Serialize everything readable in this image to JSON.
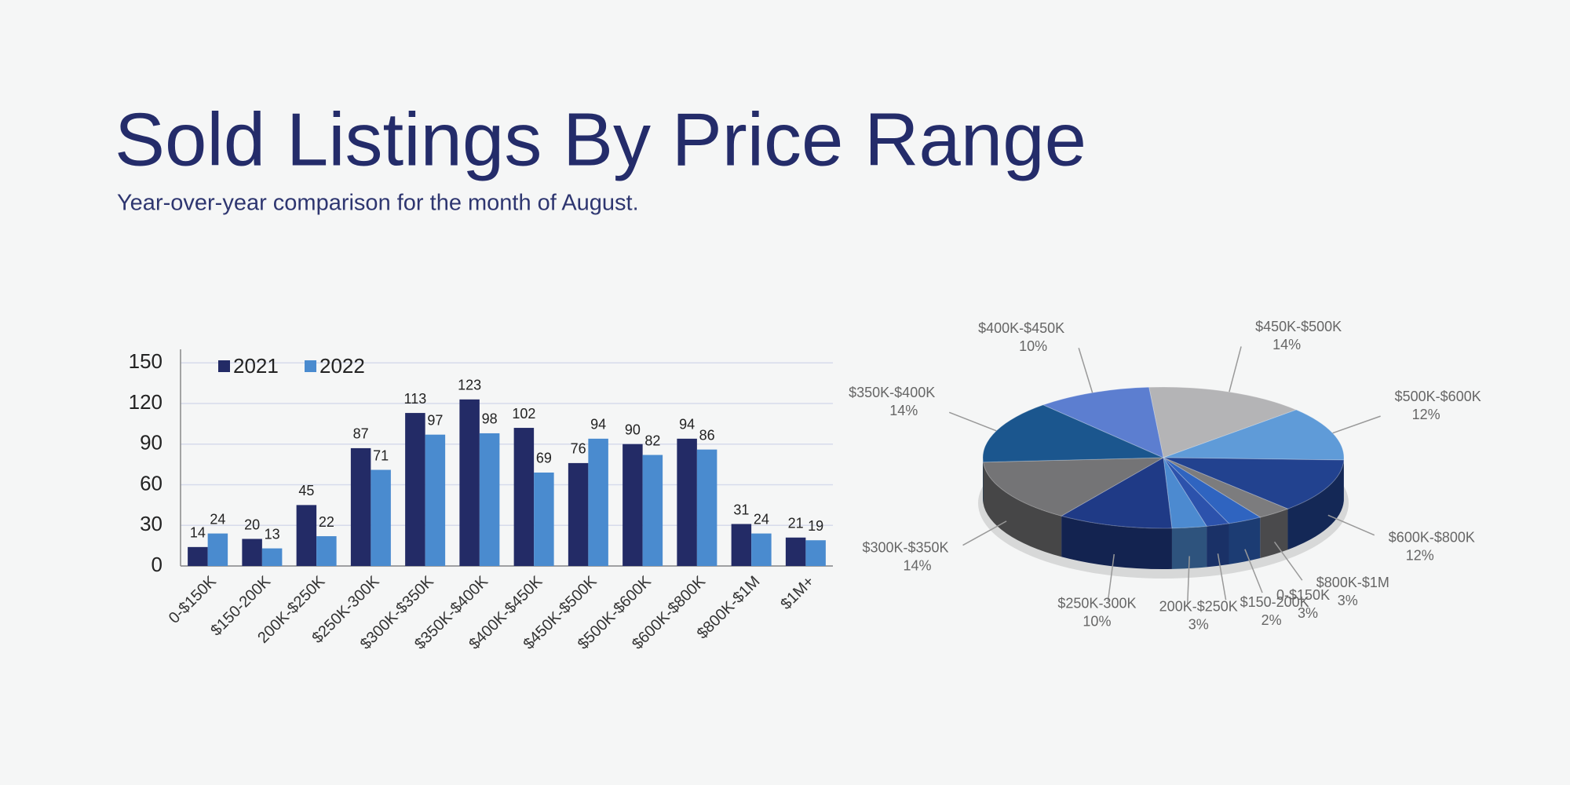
{
  "header": {
    "title": "Sold Listings By Price Range",
    "subtitle": "Year-over-year comparison for the month of August."
  },
  "chart_data": [
    {
      "type": "bar",
      "categories": [
        "0-$150K",
        "$150-200K",
        "200K-$250K",
        "$250K-300K",
        "$300K-$350K",
        "$350K-$400K",
        "$400K-$450K",
        "$450K-$500K",
        "$500K-$600K",
        "$600K-$800K",
        "$800K-$1M",
        "$1M+"
      ],
      "series": [
        {
          "name": "2021",
          "color": "#232b66",
          "values": [
            14,
            20,
            45,
            87,
            113,
            123,
            102,
            76,
            90,
            94,
            31,
            21
          ]
        },
        {
          "name": "2022",
          "color": "#4a8bcf",
          "values": [
            24,
            13,
            22,
            71,
            97,
            98,
            69,
            94,
            82,
            86,
            24,
            19
          ]
        }
      ],
      "ylim": [
        0,
        160
      ],
      "yticks": [
        0,
        30,
        60,
        90,
        120,
        150
      ],
      "grid": true,
      "legend": "top-left"
    },
    {
      "type": "pie",
      "categories": [
        "$450K-$500K",
        "$500K-$600K",
        "$600K-$800K",
        "$800K-$1M",
        "0-$150K",
        "$150-200K",
        "200K-$250K",
        "$250K-300K",
        "$300K-$350K",
        "$350K-$400K",
        "$400K-$450K"
      ],
      "values": [
        14,
        12,
        12,
        3,
        3,
        2,
        3,
        10,
        14,
        14,
        10
      ],
      "value_labels": [
        "14%",
        "12%",
        "12%",
        "3%",
        "3%",
        "2%",
        "3%",
        "10%",
        "14%",
        "14%",
        "10%"
      ],
      "colors": [
        "#b4b4b6",
        "#5f9bd8",
        "#22428f",
        "#7c7c7e",
        "#2f64c0",
        "#2c52ac",
        "#4c8ad0",
        "#1f3a86",
        "#747476",
        "#1b568e",
        "#5c7ed0"
      ]
    }
  ]
}
